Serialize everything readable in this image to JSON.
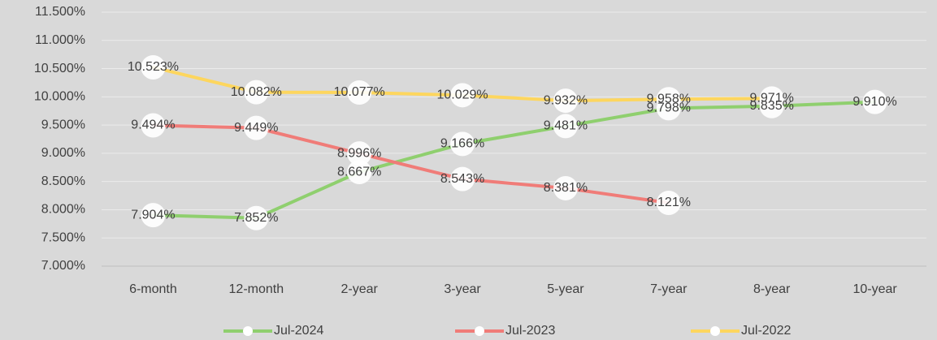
{
  "chart_data": {
    "type": "line",
    "categories": [
      "6-month",
      "12-month",
      "2-year",
      "3-year",
      "5-year",
      "7-year",
      "8-year",
      "10-year"
    ],
    "series": [
      {
        "name": "Jul-2024",
        "color": "#8fcf6e",
        "values": [
          7.904,
          7.852,
          8.667,
          9.166,
          9.481,
          9.798,
          9.835,
          9.91
        ],
        "value_labels": [
          "7.904%",
          "7.852%",
          "8.667%",
          "9.166%",
          "9.481%",
          "9.798%",
          "9.835%",
          "9.910%"
        ]
      },
      {
        "name": "Jul-2023",
        "color": "#f07c78",
        "values": [
          9.494,
          9.449,
          8.996,
          8.543,
          8.381,
          8.121,
          null,
          null
        ],
        "value_labels": [
          "9.494%",
          "9.449%",
          "8.996%",
          "8.543%",
          "8.381%",
          "8.121%",
          null,
          null
        ]
      },
      {
        "name": "Jul-2022",
        "color": "#fdd65e",
        "values": [
          10.523,
          10.082,
          10.077,
          10.029,
          9.932,
          9.958,
          9.971,
          null
        ],
        "value_labels": [
          "10.523%",
          "10.082%",
          "10.077%",
          "10.029%",
          "9.932%",
          "9.958%",
          "9.971%",
          null
        ]
      }
    ],
    "ylim": [
      7,
      11.5
    ],
    "yticks": [
      {
        "value": 7,
        "label": "7.000%"
      },
      {
        "value": 7.5,
        "label": "7.500%"
      },
      {
        "value": 8,
        "label": "8.000%"
      },
      {
        "value": 8.5,
        "label": "8.500%"
      },
      {
        "value": 9,
        "label": "9.000%"
      },
      {
        "value": 9.5,
        "label": "9.500%"
      },
      {
        "value": 10,
        "label": "10.000%"
      },
      {
        "value": 10.5,
        "label": "10.500%"
      },
      {
        "value": 11,
        "label": "11.000%"
      },
      {
        "value": 11.5,
        "label": "11.500%"
      }
    ],
    "grid": true,
    "legend": "bottom"
  }
}
